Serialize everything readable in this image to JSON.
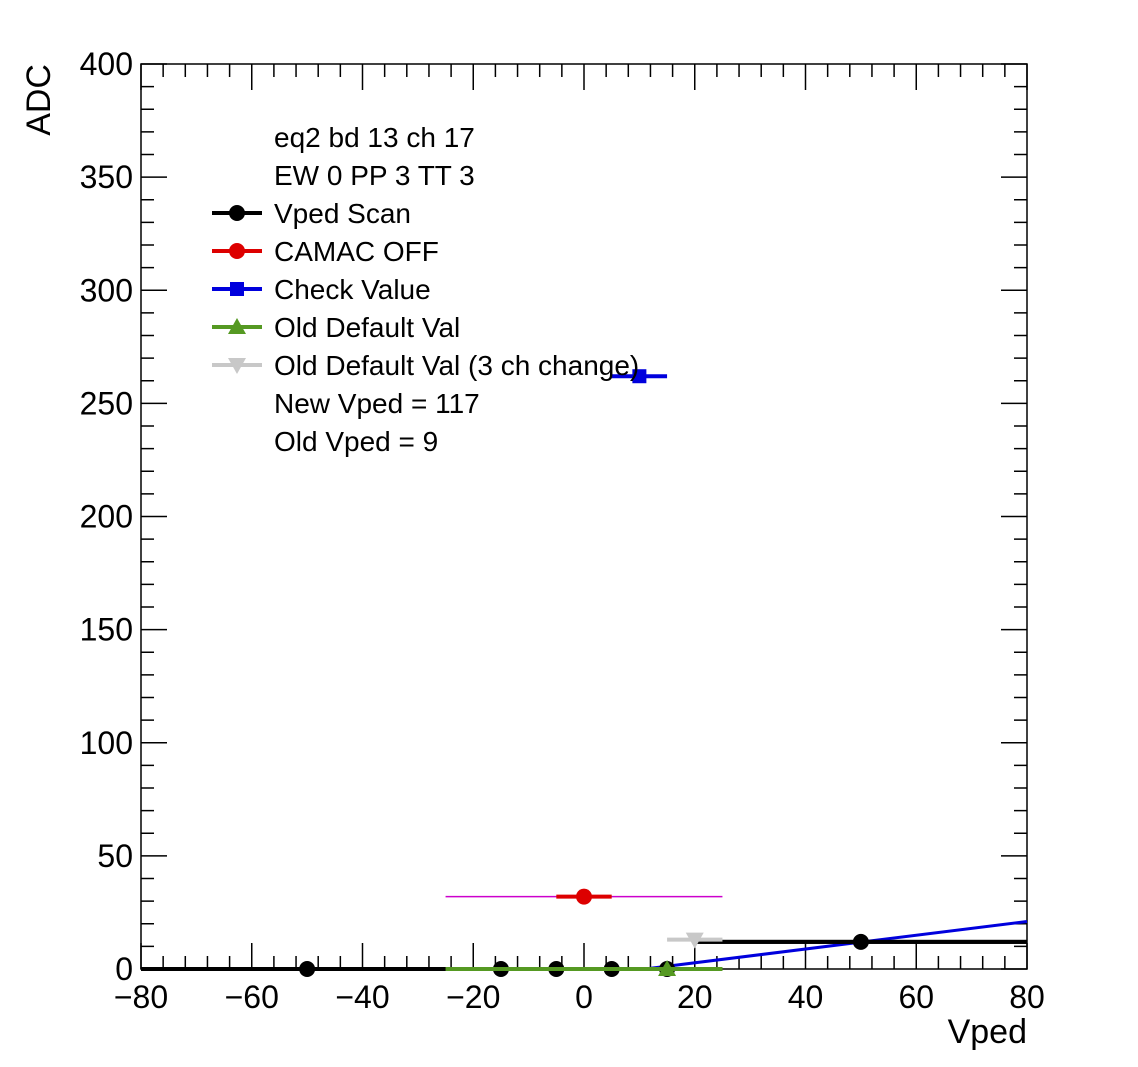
{
  "chart_data": {
    "type": "scatter",
    "xlabel": "Vped",
    "ylabel": "ADC",
    "xlim": [
      -80,
      80
    ],
    "ylim": [
      0,
      400
    ],
    "x_ticks": [
      "−80",
      "−60",
      "−40",
      "−20",
      "0",
      "20",
      "40",
      "60",
      "80"
    ],
    "y_ticks": [
      "0",
      "50",
      "100",
      "150",
      "200",
      "250",
      "300",
      "350",
      "400"
    ],
    "grid": false,
    "legend_placement": "top-left",
    "info_lines": [
      "eq2 bd 13 ch 17",
      "EW 0 PP 3 TT 3"
    ],
    "note_lines": [
      "New Vped = 117",
      "Old Vped = 9"
    ],
    "series": [
      {
        "name": "Vped Scan",
        "color": "#000000",
        "marker": "circle",
        "points": [
          {
            "x": -50,
            "y": 0,
            "xerr": 30
          },
          {
            "x": -15,
            "y": 0,
            "xerr": 0
          },
          {
            "x": -5,
            "y": 0,
            "xerr": 0
          },
          {
            "x": 5,
            "y": 0,
            "xerr": 0
          },
          {
            "x": 15,
            "y": 0,
            "xerr": 0
          },
          {
            "x": 50,
            "y": 12,
            "xerr": 30
          }
        ],
        "segments": [
          {
            "x0": -80,
            "x1": 15,
            "y": 0
          },
          {
            "x0": 20,
            "x1": 80,
            "y": 12
          }
        ]
      },
      {
        "name": "CAMAC OFF",
        "color": "#dd0000",
        "marker": "circle",
        "points": [
          {
            "x": 0,
            "y": 32,
            "xerr": 5
          }
        ]
      },
      {
        "name": "Check Value",
        "color": "#0000dd",
        "marker": "square",
        "points": [
          {
            "x": 10,
            "y": 262,
            "xerr": 5
          }
        ]
      },
      {
        "name": "Old Default Val",
        "color": "#559922",
        "marker": "triangle-up",
        "points": [
          {
            "x": 15,
            "y": 0,
            "xerr": 10
          }
        ],
        "segments": [
          {
            "x0": -25,
            "x1": 25,
            "y": 0
          }
        ]
      },
      {
        "name": "Old Default Val (3 ch change)",
        "color": "#c8c8c8",
        "marker": "triangle-down",
        "points": [
          {
            "x": 20,
            "y": 13,
            "xerr": 5
          }
        ]
      }
    ],
    "extra_lines": [
      {
        "color": "#cc00cc",
        "x0": -25,
        "x1": 25,
        "y0": 32,
        "y1": 32,
        "width": 1.5
      },
      {
        "color": "#0000dd",
        "x0": 11,
        "x1": 80,
        "y0": 0,
        "y1": 21,
        "width": 3
      }
    ]
  }
}
